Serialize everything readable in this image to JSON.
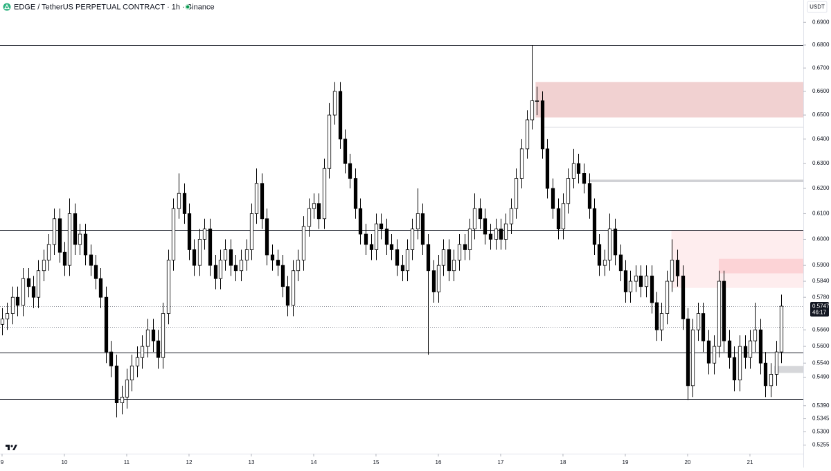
{
  "chart_data": {
    "type": "candlestick",
    "title": "EDGE / TetherUS PERPETUAL CONTRACT · 1h · Binance",
    "currency": "USDT",
    "log": true,
    "up_color": "#ffffff",
    "down_color": "#000000",
    "edge_color": "#000000",
    "xlim": [
      8.967,
      21.856
    ],
    "xticks": [
      9,
      10,
      11,
      12,
      13,
      14,
      15,
      16,
      17,
      18,
      19,
      20,
      21
    ],
    "ylim": [
      0.5226,
      0.7
    ],
    "yticks": [
      {
        "value": 0.69,
        "label": "0.6900"
      },
      {
        "value": 0.68,
        "label": "0.6800"
      },
      {
        "value": 0.67,
        "label": "0.6700"
      },
      {
        "value": 0.66,
        "label": "0.6600"
      },
      {
        "value": 0.65,
        "label": "0.6500"
      },
      {
        "value": 0.64,
        "label": "0.6400"
      },
      {
        "value": 0.63,
        "label": "0.6300"
      },
      {
        "value": 0.62,
        "label": "0.6200"
      },
      {
        "value": 0.61,
        "label": "0.6100"
      },
      {
        "value": 0.6,
        "label": "0.6000"
      },
      {
        "value": 0.59,
        "label": "0.5900"
      },
      {
        "value": 0.584,
        "label": "0.5840"
      },
      {
        "value": 0.578,
        "label": "0.5780"
      },
      {
        "value": 0.566,
        "label": "0.5660"
      },
      {
        "value": 0.56,
        "label": "0.5600"
      },
      {
        "value": 0.554,
        "label": "0.5540"
      },
      {
        "value": 0.549,
        "label": "0.5490"
      },
      {
        "value": 0.539,
        "label": "0.5390"
      },
      {
        "value": 0.5345,
        "label": "0.5345"
      },
      {
        "value": 0.53,
        "label": "0.5300"
      },
      {
        "value": 0.5255,
        "label": "0.5255"
      }
    ],
    "last_price": {
      "value": 0.5747,
      "label": "0.5747"
    },
    "countdown": "46:17",
    "levels": [
      0.68,
      0.6036,
      0.5578,
      0.5414
    ],
    "dotted_levels": [
      0.5747,
      0.567
    ],
    "zones": [
      {
        "x": 17.56,
        "low": 0.649,
        "high": 0.664,
        "color": "rgba(200,70,70,0.25)"
      },
      {
        "x": 19.74,
        "low": 0.5815,
        "high": 0.6036,
        "color": "rgba(242,54,69,0.09)"
      },
      {
        "x": 20.5,
        "low": 0.587,
        "high": 0.5925,
        "color": "rgba(242,54,69,0.14)"
      },
      {
        "x": 18.41,
        "low": 0.6225,
        "high": 0.6235,
        "color": "rgba(120,123,134,0.35)"
      },
      {
        "x": 21.39,
        "low": 0.5505,
        "high": 0.553,
        "color": "rgba(120,123,134,0.3)"
      }
    ],
    "rays": [
      {
        "x": 17.67,
        "value": 0.645,
        "color": "#d1d4dc"
      }
    ],
    "x": [
      9,
      9.08,
      9.17,
      9.25,
      9.33,
      9.42,
      9.5,
      9.58,
      9.67,
      9.75,
      9.83,
      9.92,
      10,
      10.08,
      10.17,
      10.25,
      10.33,
      10.42,
      10.5,
      10.58,
      10.67,
      10.75,
      10.83,
      10.92,
      11,
      11.08,
      11.17,
      11.25,
      11.33,
      11.42,
      11.5,
      11.58,
      11.67,
      11.75,
      11.83,
      11.92,
      12,
      12.08,
      12.17,
      12.25,
      12.33,
      12.42,
      12.5,
      12.58,
      12.67,
      12.75,
      12.83,
      12.92,
      13,
      13.08,
      13.17,
      13.25,
      13.33,
      13.42,
      13.5,
      13.58,
      13.67,
      13.75,
      13.83,
      13.92,
      14,
      14.08,
      14.17,
      14.25,
      14.33,
      14.42,
      14.5,
      14.58,
      14.67,
      14.75,
      14.83,
      14.92,
      15,
      15.08,
      15.17,
      15.25,
      15.33,
      15.42,
      15.5,
      15.58,
      15.67,
      15.75,
      15.83,
      15.92,
      16,
      16.08,
      16.17,
      16.25,
      16.33,
      16.42,
      16.5,
      16.58,
      16.67,
      16.75,
      16.83,
      16.92,
      17,
      17.08,
      17.17,
      17.25,
      17.33,
      17.42,
      17.5,
      17.58,
      17.67,
      17.75,
      17.83,
      17.92,
      18,
      18.08,
      18.17,
      18.25,
      18.33,
      18.42,
      18.5,
      18.58,
      18.67,
      18.75,
      18.83,
      18.92,
      19,
      19.08,
      19.17,
      19.25,
      19.33,
      19.42,
      19.5,
      19.58,
      19.67,
      19.75,
      19.83,
      19.92,
      20,
      20.08,
      20.17,
      20.25,
      20.33,
      20.42,
      20.5,
      20.58,
      20.67,
      20.75,
      20.83,
      20.92,
      21,
      21.08,
      21.17,
      21.25,
      21.33,
      21.42,
      21.5
    ],
    "open": [
      0.568,
      0.57,
      0.572,
      0.578,
      0.575,
      0.585,
      0.582,
      0.578,
      0.588,
      0.592,
      0.598,
      0.608,
      0.595,
      0.59,
      0.61,
      0.598,
      0.602,
      0.594,
      0.59,
      0.585,
      0.578,
      0.558,
      0.553,
      0.54,
      0.542,
      0.548,
      0.553,
      0.556,
      0.56,
      0.566,
      0.562,
      0.556,
      0.572,
      0.592,
      0.612,
      0.618,
      0.61,
      0.596,
      0.59,
      0.6,
      0.604,
      0.59,
      0.585,
      0.592,
      0.596,
      0.59,
      0.588,
      0.592,
      0.596,
      0.61,
      0.622,
      0.608,
      0.594,
      0.592,
      0.59,
      0.582,
      0.575,
      0.588,
      0.592,
      0.605,
      0.612,
      0.614,
      0.608,
      0.628,
      0.65,
      0.66,
      0.64,
      0.63,
      0.624,
      0.612,
      0.602,
      0.598,
      0.596,
      0.606,
      0.604,
      0.598,
      0.596,
      0.59,
      0.588,
      0.596,
      0.604,
      0.61,
      0.598,
      0.588,
      0.58,
      0.59,
      0.596,
      0.588,
      0.592,
      0.598,
      0.596,
      0.604,
      0.612,
      0.608,
      0.602,
      0.6,
      0.604,
      0.6,
      0.606,
      0.612,
      0.624,
      0.636,
      0.648,
      0.656,
      0.656,
      0.636,
      0.62,
      0.612,
      0.604,
      0.614,
      0.624,
      0.63,
      0.626,
      0.622,
      0.612,
      0.598,
      0.59,
      0.592,
      0.604,
      0.594,
      0.588,
      0.58,
      0.584,
      0.586,
      0.582,
      0.586,
      0.576,
      0.566,
      0.572,
      0.584,
      0.592,
      0.586,
      0.57,
      0.546,
      0.566,
      0.572,
      0.562,
      0.554,
      0.56,
      0.584,
      0.562,
      0.556,
      0.548,
      0.56,
      0.556,
      0.562,
      0.566,
      0.554,
      0.546,
      0.55,
      0.558
    ],
    "high": [
      0.574,
      0.576,
      0.582,
      0.582,
      0.589,
      0.589,
      0.586,
      0.592,
      0.596,
      0.602,
      0.612,
      0.612,
      0.599,
      0.616,
      0.614,
      0.606,
      0.606,
      0.598,
      0.594,
      0.589,
      0.582,
      0.562,
      0.557,
      0.546,
      0.552,
      0.557,
      0.56,
      0.564,
      0.57,
      0.57,
      0.566,
      0.576,
      0.596,
      0.616,
      0.626,
      0.622,
      0.614,
      0.6,
      0.604,
      0.608,
      0.608,
      0.594,
      0.596,
      0.6,
      0.6,
      0.594,
      0.596,
      0.6,
      0.614,
      0.628,
      0.626,
      0.612,
      0.598,
      0.596,
      0.594,
      0.586,
      0.592,
      0.596,
      0.609,
      0.616,
      0.618,
      0.618,
      0.632,
      0.655,
      0.664,
      0.664,
      0.644,
      0.634,
      0.628,
      0.616,
      0.606,
      0.602,
      0.61,
      0.61,
      0.608,
      0.602,
      0.6,
      0.594,
      0.6,
      0.608,
      0.62,
      0.614,
      0.602,
      0.592,
      0.594,
      0.6,
      0.6,
      0.596,
      0.602,
      0.602,
      0.608,
      0.618,
      0.616,
      0.612,
      0.606,
      0.608,
      0.608,
      0.61,
      0.616,
      0.628,
      0.64,
      0.652,
      0.68,
      0.662,
      0.66,
      0.64,
      0.624,
      0.616,
      0.618,
      0.628,
      0.636,
      0.634,
      0.63,
      0.626,
      0.616,
      0.602,
      0.596,
      0.61,
      0.608,
      0.598,
      0.592,
      0.588,
      0.59,
      0.59,
      0.59,
      0.59,
      0.58,
      0.576,
      0.588,
      0.6,
      0.596,
      0.59,
      0.574,
      0.57,
      0.576,
      0.576,
      0.566,
      0.564,
      0.588,
      0.588,
      0.566,
      0.56,
      0.564,
      0.564,
      0.566,
      0.576,
      0.57,
      0.558,
      0.554,
      0.562,
      0.579
    ],
    "low": [
      0.564,
      0.566,
      0.568,
      0.571,
      0.571,
      0.578,
      0.574,
      0.574,
      0.584,
      0.588,
      0.594,
      0.591,
      0.586,
      0.586,
      0.594,
      0.594,
      0.59,
      0.586,
      0.581,
      0.574,
      0.554,
      0.549,
      0.535,
      0.536,
      0.538,
      0.544,
      0.549,
      0.552,
      0.556,
      0.558,
      0.552,
      0.552,
      0.568,
      0.588,
      0.608,
      0.606,
      0.592,
      0.586,
      0.586,
      0.596,
      0.586,
      0.581,
      0.581,
      0.588,
      0.586,
      0.584,
      0.584,
      0.588,
      0.592,
      0.606,
      0.604,
      0.59,
      0.588,
      0.586,
      0.578,
      0.571,
      0.571,
      0.584,
      0.588,
      0.601,
      0.608,
      0.604,
      0.604,
      0.624,
      0.646,
      0.636,
      0.626,
      0.62,
      0.608,
      0.598,
      0.594,
      0.592,
      0.592,
      0.6,
      0.594,
      0.592,
      0.586,
      0.584,
      0.584,
      0.592,
      0.6,
      0.594,
      0.557,
      0.576,
      0.576,
      0.586,
      0.584,
      0.584,
      0.588,
      0.592,
      0.592,
      0.6,
      0.604,
      0.598,
      0.596,
      0.596,
      0.596,
      0.596,
      0.602,
      0.608,
      0.62,
      0.632,
      0.644,
      0.65,
      0.632,
      0.616,
      0.608,
      0.6,
      0.6,
      0.61,
      0.62,
      0.622,
      0.618,
      0.608,
      0.594,
      0.586,
      0.586,
      0.588,
      0.59,
      0.584,
      0.576,
      0.576,
      0.58,
      0.578,
      0.578,
      0.572,
      0.562,
      0.562,
      0.568,
      0.58,
      0.582,
      0.566,
      0.541,
      0.542,
      0.562,
      0.558,
      0.55,
      0.55,
      0.556,
      0.558,
      0.552,
      0.544,
      0.544,
      0.552,
      0.552,
      0.558,
      0.55,
      0.542,
      0.542,
      0.546,
      0.554
    ],
    "close": [
      0.57,
      0.572,
      0.578,
      0.575,
      0.585,
      0.582,
      0.578,
      0.588,
      0.592,
      0.598,
      0.608,
      0.595,
      0.59,
      0.61,
      0.598,
      0.602,
      0.594,
      0.59,
      0.585,
      0.578,
      0.558,
      0.553,
      0.54,
      0.542,
      0.548,
      0.553,
      0.556,
      0.56,
      0.566,
      0.562,
      0.556,
      0.572,
      0.592,
      0.612,
      0.618,
      0.61,
      0.596,
      0.59,
      0.6,
      0.604,
      0.59,
      0.585,
      0.592,
      0.596,
      0.59,
      0.588,
      0.592,
      0.596,
      0.61,
      0.622,
      0.608,
      0.594,
      0.592,
      0.59,
      0.582,
      0.575,
      0.588,
      0.592,
      0.605,
      0.612,
      0.614,
      0.608,
      0.628,
      0.65,
      0.66,
      0.64,
      0.63,
      0.624,
      0.612,
      0.602,
      0.598,
      0.596,
      0.606,
      0.604,
      0.598,
      0.596,
      0.59,
      0.588,
      0.596,
      0.604,
      0.61,
      0.598,
      0.588,
      0.58,
      0.59,
      0.596,
      0.588,
      0.592,
      0.598,
      0.596,
      0.604,
      0.612,
      0.608,
      0.602,
      0.6,
      0.604,
      0.6,
      0.606,
      0.612,
      0.624,
      0.636,
      0.648,
      0.656,
      0.656,
      0.636,
      0.62,
      0.612,
      0.604,
      0.614,
      0.624,
      0.63,
      0.626,
      0.622,
      0.612,
      0.598,
      0.59,
      0.592,
      0.604,
      0.594,
      0.588,
      0.58,
      0.584,
      0.586,
      0.582,
      0.586,
      0.576,
      0.566,
      0.572,
      0.584,
      0.592,
      0.586,
      0.57,
      0.546,
      0.566,
      0.572,
      0.562,
      0.554,
      0.56,
      0.584,
      0.562,
      0.556,
      0.548,
      0.56,
      0.556,
      0.562,
      0.566,
      0.554,
      0.546,
      0.55,
      0.558,
      0.5747
    ]
  }
}
